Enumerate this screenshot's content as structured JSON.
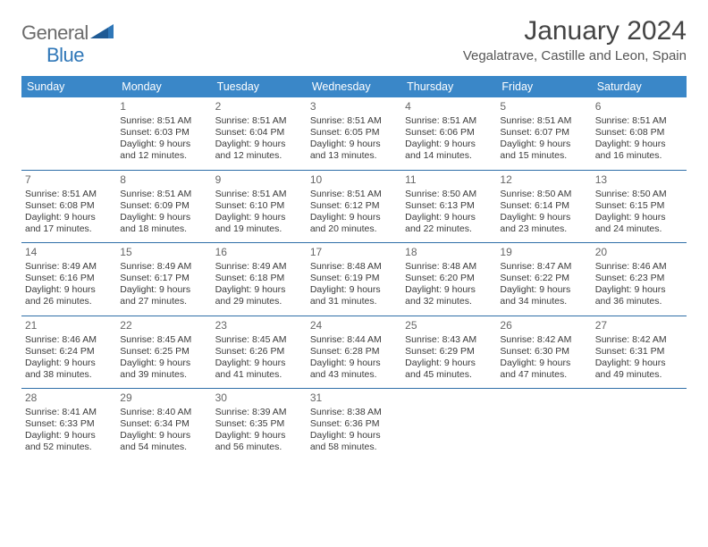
{
  "logo": {
    "general": "General",
    "blue": "Blue"
  },
  "title": "January 2024",
  "subtitle": "Vegalatrave, Castille and Leon, Spain",
  "colors": {
    "header_bg": "#3a87c8",
    "header_fg": "#ffffff",
    "rule": "#2f6fa8",
    "logo_gray": "#6b6b6b",
    "logo_blue": "#2f77b8"
  },
  "dow": [
    "Sunday",
    "Monday",
    "Tuesday",
    "Wednesday",
    "Thursday",
    "Friday",
    "Saturday"
  ],
  "weeks": [
    [
      {
        "n": "",
        "sr": "",
        "ss": "",
        "dl": ""
      },
      {
        "n": "1",
        "sr": "8:51 AM",
        "ss": "6:03 PM",
        "dl": "9 hours and 12 minutes."
      },
      {
        "n": "2",
        "sr": "8:51 AM",
        "ss": "6:04 PM",
        "dl": "9 hours and 12 minutes."
      },
      {
        "n": "3",
        "sr": "8:51 AM",
        "ss": "6:05 PM",
        "dl": "9 hours and 13 minutes."
      },
      {
        "n": "4",
        "sr": "8:51 AM",
        "ss": "6:06 PM",
        "dl": "9 hours and 14 minutes."
      },
      {
        "n": "5",
        "sr": "8:51 AM",
        "ss": "6:07 PM",
        "dl": "9 hours and 15 minutes."
      },
      {
        "n": "6",
        "sr": "8:51 AM",
        "ss": "6:08 PM",
        "dl": "9 hours and 16 minutes."
      }
    ],
    [
      {
        "n": "7",
        "sr": "8:51 AM",
        "ss": "6:08 PM",
        "dl": "9 hours and 17 minutes."
      },
      {
        "n": "8",
        "sr": "8:51 AM",
        "ss": "6:09 PM",
        "dl": "9 hours and 18 minutes."
      },
      {
        "n": "9",
        "sr": "8:51 AM",
        "ss": "6:10 PM",
        "dl": "9 hours and 19 minutes."
      },
      {
        "n": "10",
        "sr": "8:51 AM",
        "ss": "6:12 PM",
        "dl": "9 hours and 20 minutes."
      },
      {
        "n": "11",
        "sr": "8:50 AM",
        "ss": "6:13 PM",
        "dl": "9 hours and 22 minutes."
      },
      {
        "n": "12",
        "sr": "8:50 AM",
        "ss": "6:14 PM",
        "dl": "9 hours and 23 minutes."
      },
      {
        "n": "13",
        "sr": "8:50 AM",
        "ss": "6:15 PM",
        "dl": "9 hours and 24 minutes."
      }
    ],
    [
      {
        "n": "14",
        "sr": "8:49 AM",
        "ss": "6:16 PM",
        "dl": "9 hours and 26 minutes."
      },
      {
        "n": "15",
        "sr": "8:49 AM",
        "ss": "6:17 PM",
        "dl": "9 hours and 27 minutes."
      },
      {
        "n": "16",
        "sr": "8:49 AM",
        "ss": "6:18 PM",
        "dl": "9 hours and 29 minutes."
      },
      {
        "n": "17",
        "sr": "8:48 AM",
        "ss": "6:19 PM",
        "dl": "9 hours and 31 minutes."
      },
      {
        "n": "18",
        "sr": "8:48 AM",
        "ss": "6:20 PM",
        "dl": "9 hours and 32 minutes."
      },
      {
        "n": "19",
        "sr": "8:47 AM",
        "ss": "6:22 PM",
        "dl": "9 hours and 34 minutes."
      },
      {
        "n": "20",
        "sr": "8:46 AM",
        "ss": "6:23 PM",
        "dl": "9 hours and 36 minutes."
      }
    ],
    [
      {
        "n": "21",
        "sr": "8:46 AM",
        "ss": "6:24 PM",
        "dl": "9 hours and 38 minutes."
      },
      {
        "n": "22",
        "sr": "8:45 AM",
        "ss": "6:25 PM",
        "dl": "9 hours and 39 minutes."
      },
      {
        "n": "23",
        "sr": "8:45 AM",
        "ss": "6:26 PM",
        "dl": "9 hours and 41 minutes."
      },
      {
        "n": "24",
        "sr": "8:44 AM",
        "ss": "6:28 PM",
        "dl": "9 hours and 43 minutes."
      },
      {
        "n": "25",
        "sr": "8:43 AM",
        "ss": "6:29 PM",
        "dl": "9 hours and 45 minutes."
      },
      {
        "n": "26",
        "sr": "8:42 AM",
        "ss": "6:30 PM",
        "dl": "9 hours and 47 minutes."
      },
      {
        "n": "27",
        "sr": "8:42 AM",
        "ss": "6:31 PM",
        "dl": "9 hours and 49 minutes."
      }
    ],
    [
      {
        "n": "28",
        "sr": "8:41 AM",
        "ss": "6:33 PM",
        "dl": "9 hours and 52 minutes."
      },
      {
        "n": "29",
        "sr": "8:40 AM",
        "ss": "6:34 PM",
        "dl": "9 hours and 54 minutes."
      },
      {
        "n": "30",
        "sr": "8:39 AM",
        "ss": "6:35 PM",
        "dl": "9 hours and 56 minutes."
      },
      {
        "n": "31",
        "sr": "8:38 AM",
        "ss": "6:36 PM",
        "dl": "9 hours and 58 minutes."
      },
      {
        "n": "",
        "sr": "",
        "ss": "",
        "dl": ""
      },
      {
        "n": "",
        "sr": "",
        "ss": "",
        "dl": ""
      },
      {
        "n": "",
        "sr": "",
        "ss": "",
        "dl": ""
      }
    ]
  ],
  "labels": {
    "sunrise": "Sunrise: ",
    "sunset": "Sunset: ",
    "daylight": "Daylight: "
  }
}
